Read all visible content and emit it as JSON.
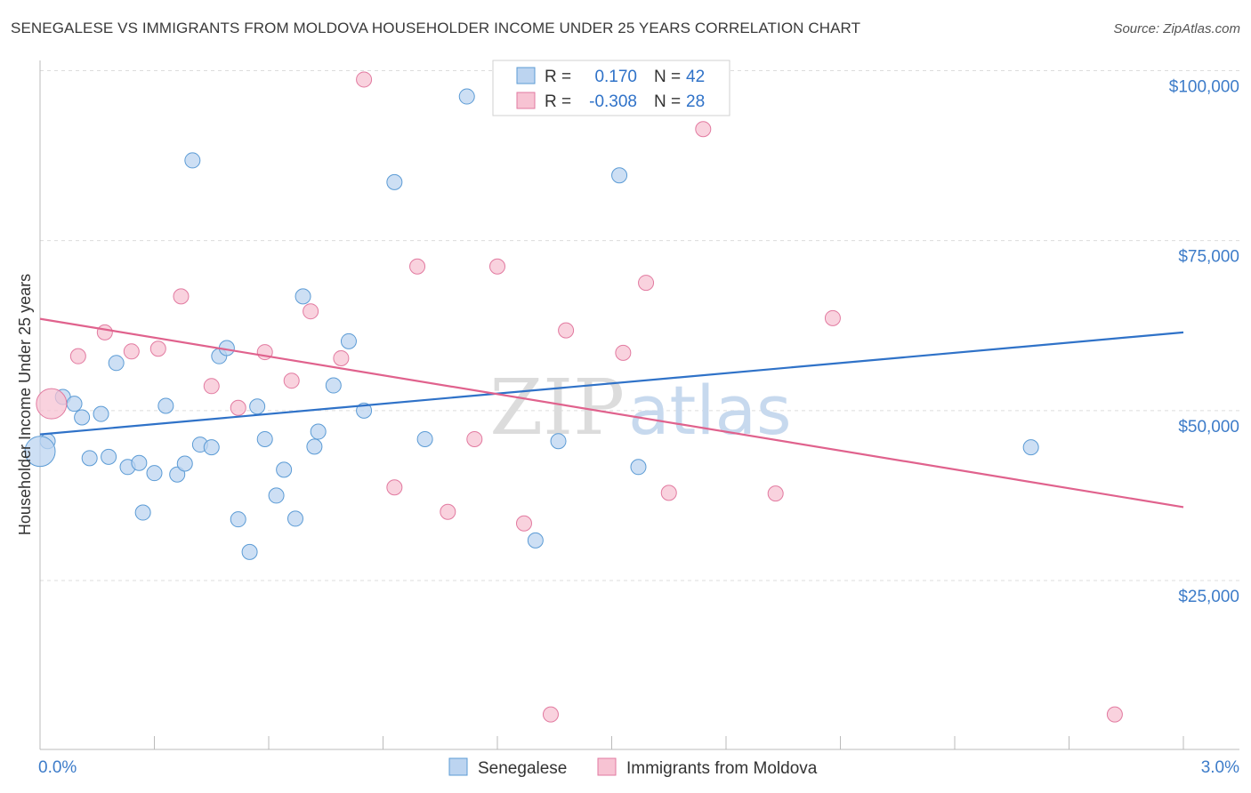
{
  "title": "SENEGALESE VS IMMIGRANTS FROM MOLDOVA HOUSEHOLDER INCOME UNDER 25 YEARS CORRELATION CHART",
  "source": "Source: ZipAtlas.com",
  "colors": {
    "blue": "#5b9bd5",
    "blue_fill": "#bcd4f0",
    "blue_line": "#2f72c8",
    "pink": "#e27aa0",
    "pink_fill": "#f7c3d3",
    "pink_line": "#e0628d",
    "tick_label": "#3d7cc9",
    "grid": "#dcdcdc"
  },
  "watermark": {
    "part1": "ZIP",
    "part2": "atlas"
  },
  "legend_box": {
    "rows": [
      {
        "r_label": "R =",
        "r_value": "0.170",
        "n_label": "N =",
        "n_value": "42"
      },
      {
        "r_label": "R =",
        "r_value": "-0.308",
        "n_label": "N =",
        "n_value": "28"
      }
    ]
  },
  "chart_data": {
    "type": "scatter",
    "title": "SENEGALESE VS IMMIGRANTS FROM MOLDOVA HOUSEHOLDER INCOME UNDER 25 YEARS CORRELATION CHART",
    "xlabel": "",
    "ylabel": "Householder Income Under 25 years",
    "xlim": [
      0,
      3.0
    ],
    "ylim": [
      0,
      105000
    ],
    "x_tick_labels": [
      "0.0%",
      "3.0%"
    ],
    "y_ticks": [
      {
        "value": 25000,
        "label": "$25,000"
      },
      {
        "value": 50000,
        "label": "$50,000"
      },
      {
        "value": 75000,
        "label": "$75,000"
      },
      {
        "value": 100000,
        "label": "$100,000"
      }
    ],
    "legend": [
      "Senegalese",
      "Immigrants from Moldova"
    ],
    "series": [
      {
        "name": "Senegalese",
        "trend": {
          "x0": 0.0,
          "y0": 46500,
          "x1": 3.0,
          "y1": 61500
        },
        "points": [
          {
            "x": 0.02,
            "y": 45500,
            "big": false
          },
          {
            "x": 0.0,
            "y": 44000,
            "big": true
          },
          {
            "x": 0.06,
            "y": 52000,
            "big": false
          },
          {
            "x": 0.09,
            "y": 51000,
            "big": false
          },
          {
            "x": 0.11,
            "y": 49000,
            "big": false
          },
          {
            "x": 0.13,
            "y": 43000,
            "big": false
          },
          {
            "x": 0.16,
            "y": 49500,
            "big": false
          },
          {
            "x": 0.18,
            "y": 43200,
            "big": false
          },
          {
            "x": 0.2,
            "y": 57000,
            "big": false
          },
          {
            "x": 0.23,
            "y": 41700,
            "big": false
          },
          {
            "x": 0.26,
            "y": 42300,
            "big": false
          },
          {
            "x": 0.27,
            "y": 35000,
            "big": false
          },
          {
            "x": 0.3,
            "y": 40800,
            "big": false
          },
          {
            "x": 0.33,
            "y": 50700,
            "big": false
          },
          {
            "x": 0.36,
            "y": 40600,
            "big": false
          },
          {
            "x": 0.38,
            "y": 42200,
            "big": false
          },
          {
            "x": 0.4,
            "y": 86800,
            "big": false
          },
          {
            "x": 0.42,
            "y": 45000,
            "big": false
          },
          {
            "x": 0.45,
            "y": 44600,
            "big": false
          },
          {
            "x": 0.47,
            "y": 58000,
            "big": false
          },
          {
            "x": 0.49,
            "y": 59200,
            "big": false
          },
          {
            "x": 0.52,
            "y": 34000,
            "big": false
          },
          {
            "x": 0.55,
            "y": 29200,
            "big": false
          },
          {
            "x": 0.57,
            "y": 50600,
            "big": false
          },
          {
            "x": 0.59,
            "y": 45800,
            "big": false
          },
          {
            "x": 0.62,
            "y": 37500,
            "big": false
          },
          {
            "x": 0.64,
            "y": 41300,
            "big": false
          },
          {
            "x": 0.67,
            "y": 34100,
            "big": false
          },
          {
            "x": 0.69,
            "y": 66800,
            "big": false
          },
          {
            "x": 0.72,
            "y": 44700,
            "big": false
          },
          {
            "x": 0.73,
            "y": 46900,
            "big": false
          },
          {
            "x": 0.77,
            "y": 53700,
            "big": false
          },
          {
            "x": 0.81,
            "y": 60200,
            "big": false
          },
          {
            "x": 0.85,
            "y": 50000,
            "big": false
          },
          {
            "x": 0.93,
            "y": 83600,
            "big": false
          },
          {
            "x": 1.01,
            "y": 45800,
            "big": false
          },
          {
            "x": 1.12,
            "y": 96200,
            "big": false
          },
          {
            "x": 1.3,
            "y": 30900,
            "big": false
          },
          {
            "x": 1.36,
            "y": 45500,
            "big": false
          },
          {
            "x": 1.52,
            "y": 84600,
            "big": false
          },
          {
            "x": 1.57,
            "y": 41700,
            "big": false
          },
          {
            "x": 2.6,
            "y": 44600,
            "big": false
          }
        ]
      },
      {
        "name": "Immigrants from Moldova",
        "trend": {
          "x0": 0.0,
          "y0": 63500,
          "x1": 3.0,
          "y1": 35800
        },
        "points": [
          {
            "x": 0.03,
            "y": 51000,
            "big": true
          },
          {
            "x": 0.1,
            "y": 58000,
            "big": false
          },
          {
            "x": 0.17,
            "y": 61500,
            "big": false
          },
          {
            "x": 0.24,
            "y": 58700,
            "big": false
          },
          {
            "x": 0.31,
            "y": 59100,
            "big": false
          },
          {
            "x": 0.37,
            "y": 66800,
            "big": false
          },
          {
            "x": 0.45,
            "y": 53600,
            "big": false
          },
          {
            "x": 0.52,
            "y": 50400,
            "big": false
          },
          {
            "x": 0.59,
            "y": 58600,
            "big": false
          },
          {
            "x": 0.66,
            "y": 54400,
            "big": false
          },
          {
            "x": 0.71,
            "y": 64600,
            "big": false
          },
          {
            "x": 0.79,
            "y": 57700,
            "big": false
          },
          {
            "x": 0.85,
            "y": 98700,
            "big": false
          },
          {
            "x": 0.93,
            "y": 38700,
            "big": false
          },
          {
            "x": 0.99,
            "y": 71200,
            "big": false
          },
          {
            "x": 1.07,
            "y": 35100,
            "big": false
          },
          {
            "x": 1.14,
            "y": 45800,
            "big": false
          },
          {
            "x": 1.2,
            "y": 71200,
            "big": false
          },
          {
            "x": 1.27,
            "y": 33400,
            "big": false
          },
          {
            "x": 1.34,
            "y": 5300,
            "big": false
          },
          {
            "x": 1.38,
            "y": 61800,
            "big": false
          },
          {
            "x": 1.53,
            "y": 58500,
            "big": false
          },
          {
            "x": 1.59,
            "y": 68800,
            "big": false
          },
          {
            "x": 1.65,
            "y": 37900,
            "big": false
          },
          {
            "x": 1.74,
            "y": 91400,
            "big": false
          },
          {
            "x": 1.93,
            "y": 37800,
            "big": false
          },
          {
            "x": 2.08,
            "y": 63600,
            "big": false
          },
          {
            "x": 2.82,
            "y": 5300,
            "big": false
          }
        ]
      }
    ]
  }
}
